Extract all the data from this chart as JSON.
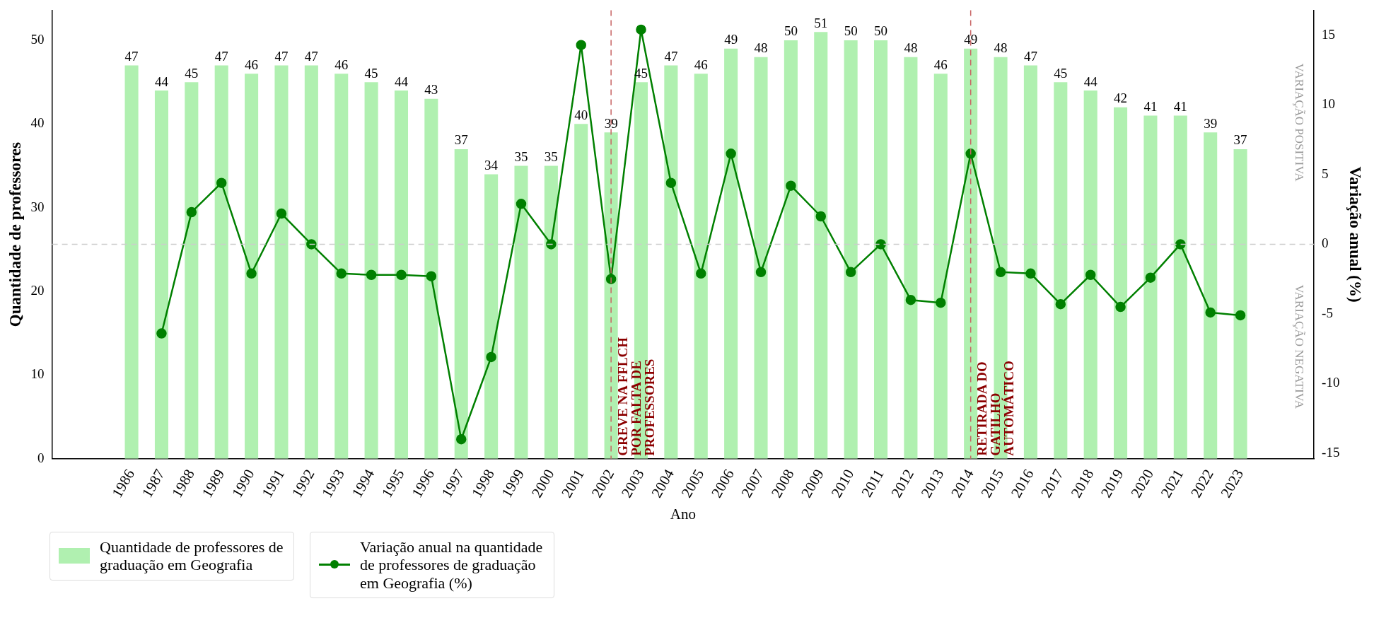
{
  "chart_data": {
    "type": "bar",
    "categories": [
      "1986",
      "1987",
      "1988",
      "1989",
      "1990",
      "1991",
      "1992",
      "1993",
      "1994",
      "1995",
      "1996",
      "1997",
      "1998",
      "1999",
      "2000",
      "2001",
      "2002",
      "2003",
      "2004",
      "2005",
      "2006",
      "2007",
      "2008",
      "2009",
      "2010",
      "2011",
      "2012",
      "2013",
      "2014",
      "2015",
      "2016",
      "2017",
      "2018",
      "2019",
      "2020",
      "2021",
      "2022",
      "2023"
    ],
    "series": [
      {
        "name": "Quantidade de professores de graduação em Geografia",
        "color": "#b0f0b0",
        "data_labels": true,
        "values": [
          47,
          44,
          45,
          47,
          46,
          47,
          47,
          46,
          45,
          44,
          43,
          37,
          34,
          35,
          35,
          40,
          39,
          45,
          47,
          46,
          49,
          48,
          50,
          51,
          50,
          50,
          48,
          46,
          49,
          48,
          47,
          45,
          44,
          42,
          41,
          41,
          39,
          37
        ]
      },
      {
        "name": "Variação anual na quantidade de professores de graduação em Geografia (%)",
        "type": "line",
        "axis": "y2",
        "color": "#008000",
        "marker": "circle",
        "line_style": "solid",
        "values": [
          null,
          -6.4,
          2.3,
          4.4,
          -2.1,
          2.2,
          0,
          -2.1,
          -2.2,
          -2.2,
          -2.3,
          -14.0,
          -8.1,
          2.9,
          0,
          14.3,
          -2.5,
          15.4,
          4.4,
          -2.1,
          6.5,
          -2.0,
          4.2,
          2.0,
          -2.0,
          0,
          -4.0,
          -4.2,
          6.5,
          -2.0,
          -2.1,
          -4.3,
          -2.2,
          -4.5,
          -2.4,
          0,
          -4.9,
          -5.1
        ]
      }
    ],
    "xlabel": "Ano",
    "ylabel": "Quantidade de professores",
    "y2label": "Variação anual (%)",
    "ylim": [
      0,
      53.6
    ],
    "yticks": [
      0,
      10,
      20,
      30,
      40,
      50
    ],
    "y2lim": [
      -15.4,
      16.8
    ],
    "y2ticks": [
      -15,
      -10,
      -5,
      0,
      5,
      10,
      15
    ],
    "ref_lines": [
      {
        "axis": "y2",
        "value": 0,
        "color": "#cccccc",
        "line_style": "dashed"
      },
      {
        "axis": "x",
        "value": "2002",
        "color": "#c86464",
        "line_style": "dashed",
        "label": "GREVE NA FFLCH\nPOR FALTA DE\nPROFESSORES"
      },
      {
        "axis": "x",
        "value": "2014",
        "color": "#c86464",
        "line_style": "dashed",
        "label": "RETIRADA DO\nGATILHO\nAUTOMÁTICO"
      }
    ],
    "annotations": [
      "VARIAÇÃO POSITIVA",
      "VARIAÇÃO NEGATIVA"
    ],
    "legend": "bottom"
  }
}
